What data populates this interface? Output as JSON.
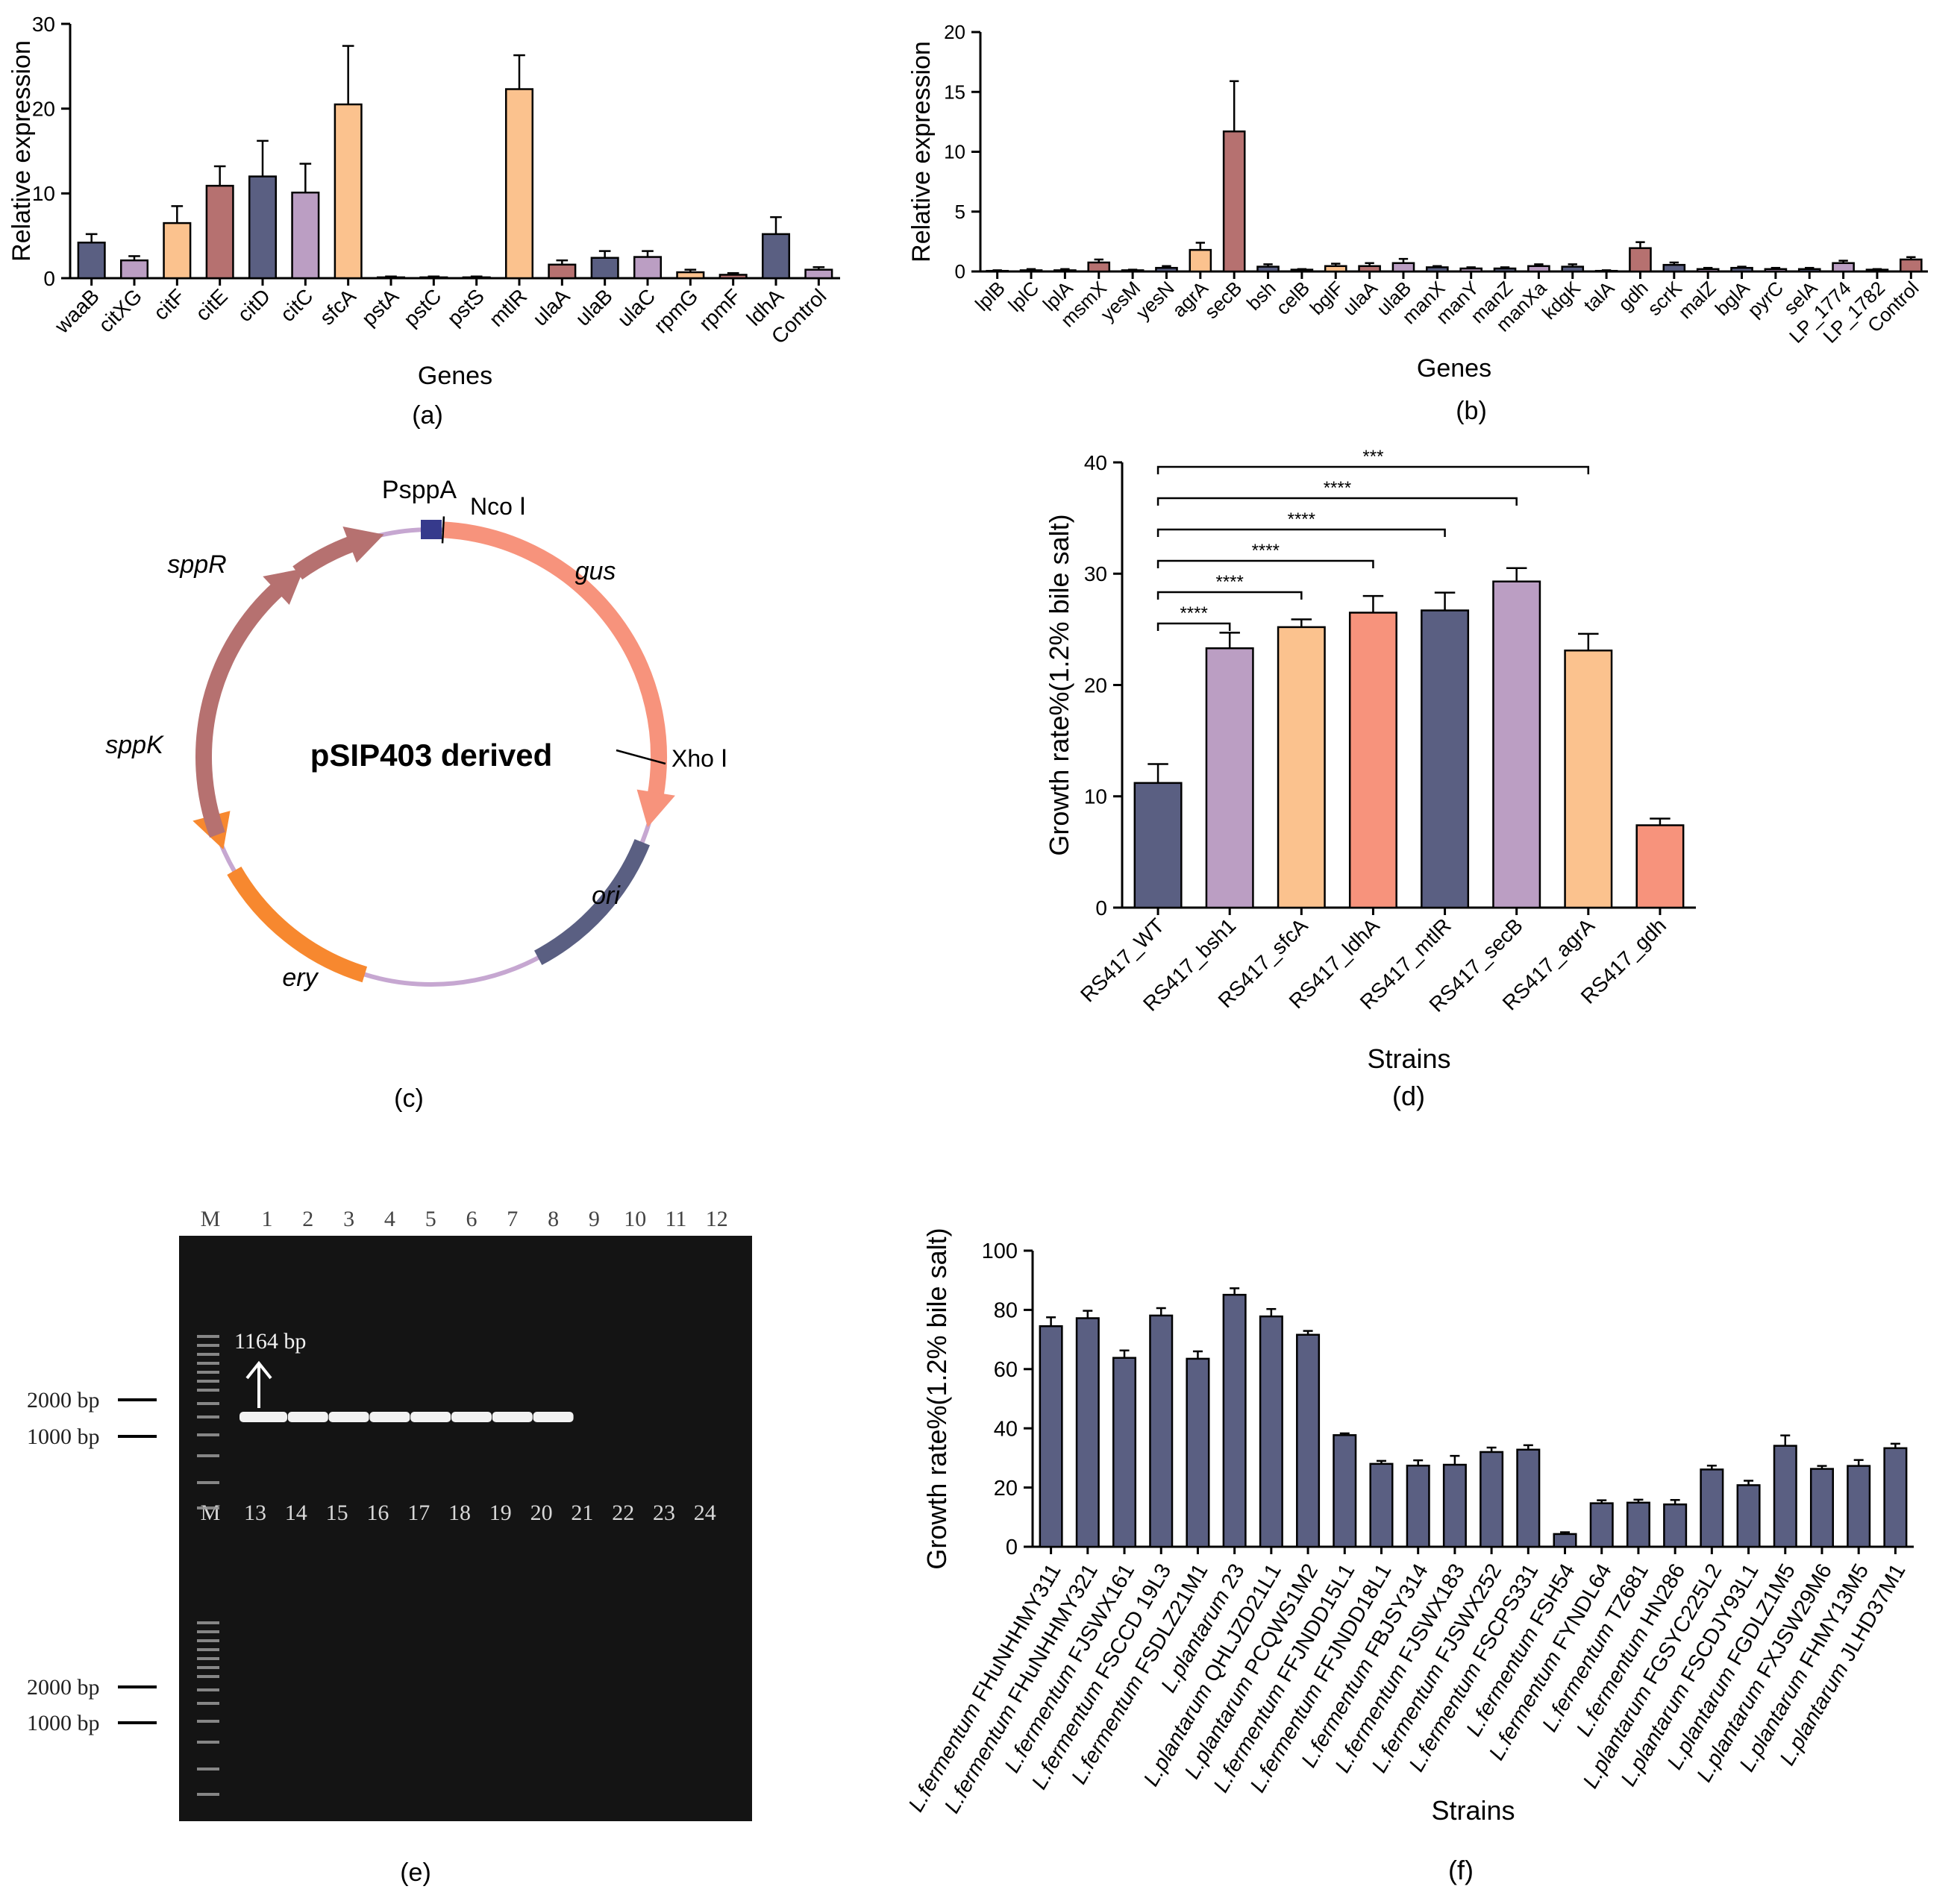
{
  "colors": {
    "navy": "#5a5f82",
    "lilac": "#bb9ec3",
    "peach": "#fbc28e",
    "brick": "#b67170",
    "salmon": "#f7937c",
    "orange": "#f7882f",
    "ring": "#c6a7d1",
    "red_label": "#ee2b2b"
  },
  "chart_data": [
    {
      "panel": "a",
      "type": "bar",
      "caption": "(a)",
      "xlabel": "Genes",
      "ylabel": "Relative expression",
      "ylim": [
        0,
        30
      ],
      "yticks": [
        0,
        10,
        20,
        30
      ],
      "categories": [
        "waaB",
        "citXG",
        "citF",
        "citE",
        "citD",
        "citC",
        "sfcA",
        "pstA",
        "pstC",
        "pstS",
        "mtlR",
        "ulaA",
        "ulaB",
        "ulaC",
        "rpmG",
        "rpmF",
        "ldhA",
        "Control"
      ],
      "values": [
        4.2,
        2.1,
        6.5,
        10.9,
        12.0,
        10.1,
        20.5,
        0.1,
        0.1,
        0.1,
        22.3,
        1.6,
        2.4,
        2.5,
        0.7,
        0.4,
        5.2,
        1.0
      ],
      "errors": [
        1.0,
        0.5,
        2.0,
        2.3,
        4.2,
        3.4,
        6.9,
        0.1,
        0.1,
        0.1,
        4.0,
        0.5,
        0.8,
        0.7,
        0.3,
        0.2,
        2.0,
        0.3
      ],
      "colors": [
        "navy",
        "lilac",
        "peach",
        "brick",
        "navy",
        "lilac",
        "peach",
        "navy",
        "lilac",
        "peach",
        "peach",
        "brick",
        "navy",
        "lilac",
        "peach",
        "brick",
        "navy",
        "lilac"
      ]
    },
    {
      "panel": "b",
      "type": "bar",
      "caption": "(b)",
      "xlabel": "Genes",
      "ylabel": "Relative expression",
      "ylim": [
        0,
        20
      ],
      "yticks": [
        0,
        5,
        10,
        15,
        20
      ],
      "categories": [
        "lplB",
        "lplC",
        "lplA",
        "msmX",
        "yesM",
        "yesN",
        "agrA",
        "secB",
        "bsh",
        "celB",
        "bglF",
        "ulaA",
        "ulaB",
        "manX",
        "manY",
        "manZ",
        "manXa",
        "kdgK",
        "talA",
        "gdh",
        "scrK",
        "malZ",
        "bglA",
        "pyrC",
        "selA",
        "LP_1774",
        "LP_1782",
        "Control"
      ],
      "values": [
        0.05,
        0.1,
        0.1,
        0.75,
        0.1,
        0.3,
        1.8,
        11.7,
        0.4,
        0.15,
        0.45,
        0.45,
        0.7,
        0.35,
        0.25,
        0.25,
        0.45,
        0.4,
        0.05,
        1.95,
        0.55,
        0.2,
        0.3,
        0.2,
        0.2,
        0.7,
        0.15,
        1.0
      ],
      "errors": [
        0.05,
        0.1,
        0.1,
        0.25,
        0.05,
        0.15,
        0.6,
        4.2,
        0.2,
        0.05,
        0.2,
        0.25,
        0.35,
        0.1,
        0.1,
        0.1,
        0.15,
        0.2,
        0.05,
        0.5,
        0.2,
        0.1,
        0.1,
        0.1,
        0.1,
        0.2,
        0.05,
        0.2
      ],
      "colors": [
        "navy",
        "lilac",
        "navy",
        "brick",
        "navy",
        "navy",
        "peach",
        "brick",
        "navy",
        "lilac",
        "peach",
        "brick",
        "lilac",
        "navy",
        "lilac",
        "navy",
        "lilac",
        "navy",
        "navy",
        "brick",
        "navy",
        "lilac",
        "navy",
        "lilac",
        "navy",
        "lilac",
        "navy",
        "brick"
      ]
    },
    {
      "panel": "d",
      "type": "bar",
      "caption": "(d)",
      "xlabel": "Strains",
      "ylabel": "Growth rate%(1.2% bile salt)",
      "ylim": [
        0,
        40
      ],
      "yticks": [
        0,
        10,
        20,
        30,
        40
      ],
      "categories": [
        "RS417_WT",
        "RS417_bsh1",
        "RS417_sfcA",
        "RS417_ldhA",
        "RS417_mtlR",
        "RS417_secB",
        "RS417_agrA",
        "RS417_gdh"
      ],
      "values": [
        11.2,
        23.3,
        25.2,
        26.5,
        26.7,
        29.3,
        23.1,
        7.4
      ],
      "errors": [
        1.7,
        1.4,
        0.7,
        1.5,
        1.6,
        1.2,
        1.5,
        0.6
      ],
      "colors": [
        "navy",
        "lilac",
        "peach",
        "salmon",
        "navy",
        "lilac",
        "peach",
        "salmon"
      ],
      "significance": [
        {
          "to": 1,
          "label": "****"
        },
        {
          "to": 2,
          "label": "****"
        },
        {
          "to": 3,
          "label": "****"
        },
        {
          "to": 4,
          "label": "****"
        },
        {
          "to": 5,
          "label": "****"
        },
        {
          "to": 6,
          "label": "***"
        }
      ]
    },
    {
      "panel": "f",
      "type": "bar",
      "caption": "(f)",
      "xlabel": "Strains",
      "ylabel": "Growth rate%(1.2% bile salt)",
      "ylim": [
        0,
        100
      ],
      "yticks": [
        0,
        20,
        40,
        60,
        80,
        100
      ],
      "categories": [
        {
          "species": "L.fermentum",
          "strain": "FHuNHHMY311",
          "highlight": true
        },
        {
          "species": "L.fermentum",
          "strain": "FHuNHHMY321",
          "highlight": true
        },
        {
          "species": "L.fermentum",
          "strain": "FJSWX161",
          "highlight": true
        },
        {
          "species": "L.fermentum",
          "strain": "FSCCD 19L3",
          "highlight": true
        },
        {
          "species": "L.fermentum",
          "strain": "FSDLZ21M1",
          "highlight": true
        },
        {
          "species": "L.plantarum",
          "strain": "23",
          "highlight": true
        },
        {
          "species": "L.plantarum",
          "strain": "QHLJZD21L1",
          "highlight": true
        },
        {
          "species": "L.plantarum",
          "strain": "PCQWS1M2",
          "highlight": true
        },
        {
          "species": "L.fermentum",
          "strain": "FFJNDD15L1",
          "highlight": false
        },
        {
          "species": "L.fermentum",
          "strain": "FFJNDD18L1",
          "highlight": false
        },
        {
          "species": "L.fermentum",
          "strain": "FBJSY314",
          "highlight": false
        },
        {
          "species": "L.fermentum",
          "strain": "FJSWX183",
          "highlight": false
        },
        {
          "species": "L.fermentum",
          "strain": "FJSWX252",
          "highlight": false
        },
        {
          "species": "L.fermentum",
          "strain": "FSCPS331",
          "highlight": false
        },
        {
          "species": "L.fermentum",
          "strain": "FSH54",
          "highlight": false
        },
        {
          "species": "L.fermentum",
          "strain": "FYNDL64",
          "highlight": false
        },
        {
          "species": "L.fermentum",
          "strain": "TZ681",
          "highlight": false
        },
        {
          "species": "L.fermentum",
          "strain": "HN286",
          "highlight": false
        },
        {
          "species": "L.plantarum",
          "strain": "FGSYC225L2",
          "highlight": false
        },
        {
          "species": "L.plantarum",
          "strain": "FSCDJY93L1",
          "highlight": false
        },
        {
          "species": "L.plantarum",
          "strain": "FGDLZ1M5",
          "highlight": false
        },
        {
          "species": "L.plantarum",
          "strain": "FXJSW29M6",
          "highlight": false
        },
        {
          "species": "L.plantarum",
          "strain": "FHMY13M5",
          "highlight": false
        },
        {
          "species": "L.plantarum",
          "strain": "JLHD37M1",
          "highlight": false
        }
      ],
      "values": [
        74.5,
        77.2,
        63.8,
        78.1,
        63.5,
        85.1,
        77.8,
        71.6,
        37.7,
        28.0,
        27.4,
        27.7,
        32.0,
        32.8,
        4.3,
        14.7,
        14.9,
        14.3,
        26.1,
        20.8,
        34.1,
        26.3,
        27.3,
        33.3
      ],
      "errors": [
        3.0,
        2.5,
        2.5,
        2.5,
        2.5,
        2.2,
        2.5,
        1.3,
        0.6,
        1.0,
        1.8,
        3.0,
        1.5,
        1.5,
        0.6,
        1.0,
        1.0,
        1.5,
        1.3,
        1.5,
        3.5,
        1.0,
        2.0,
        1.5
      ],
      "color": "navy"
    }
  ],
  "plasmid": {
    "caption": "(c)",
    "title": "pSIP403 derived",
    "promoter": "PsppA",
    "site_top": "Nco Ⅰ",
    "site_right": "Xho Ⅰ",
    "genes": [
      "gus",
      "ori",
      "ery",
      "sppK",
      "sppR"
    ]
  },
  "gel": {
    "caption": "(e)",
    "marker": "M",
    "lanes_top": [
      "1",
      "2",
      "3",
      "4",
      "5",
      "6",
      "7",
      "8",
      "9",
      "10",
      "11",
      "12"
    ],
    "lanes_bottom": [
      "13",
      "14",
      "15",
      "16",
      "17",
      "18",
      "19",
      "20",
      "21",
      "22",
      "23",
      "24"
    ],
    "band_label": "1164 bp",
    "ladder_labels": [
      "2000 bp",
      "1000 bp"
    ]
  }
}
